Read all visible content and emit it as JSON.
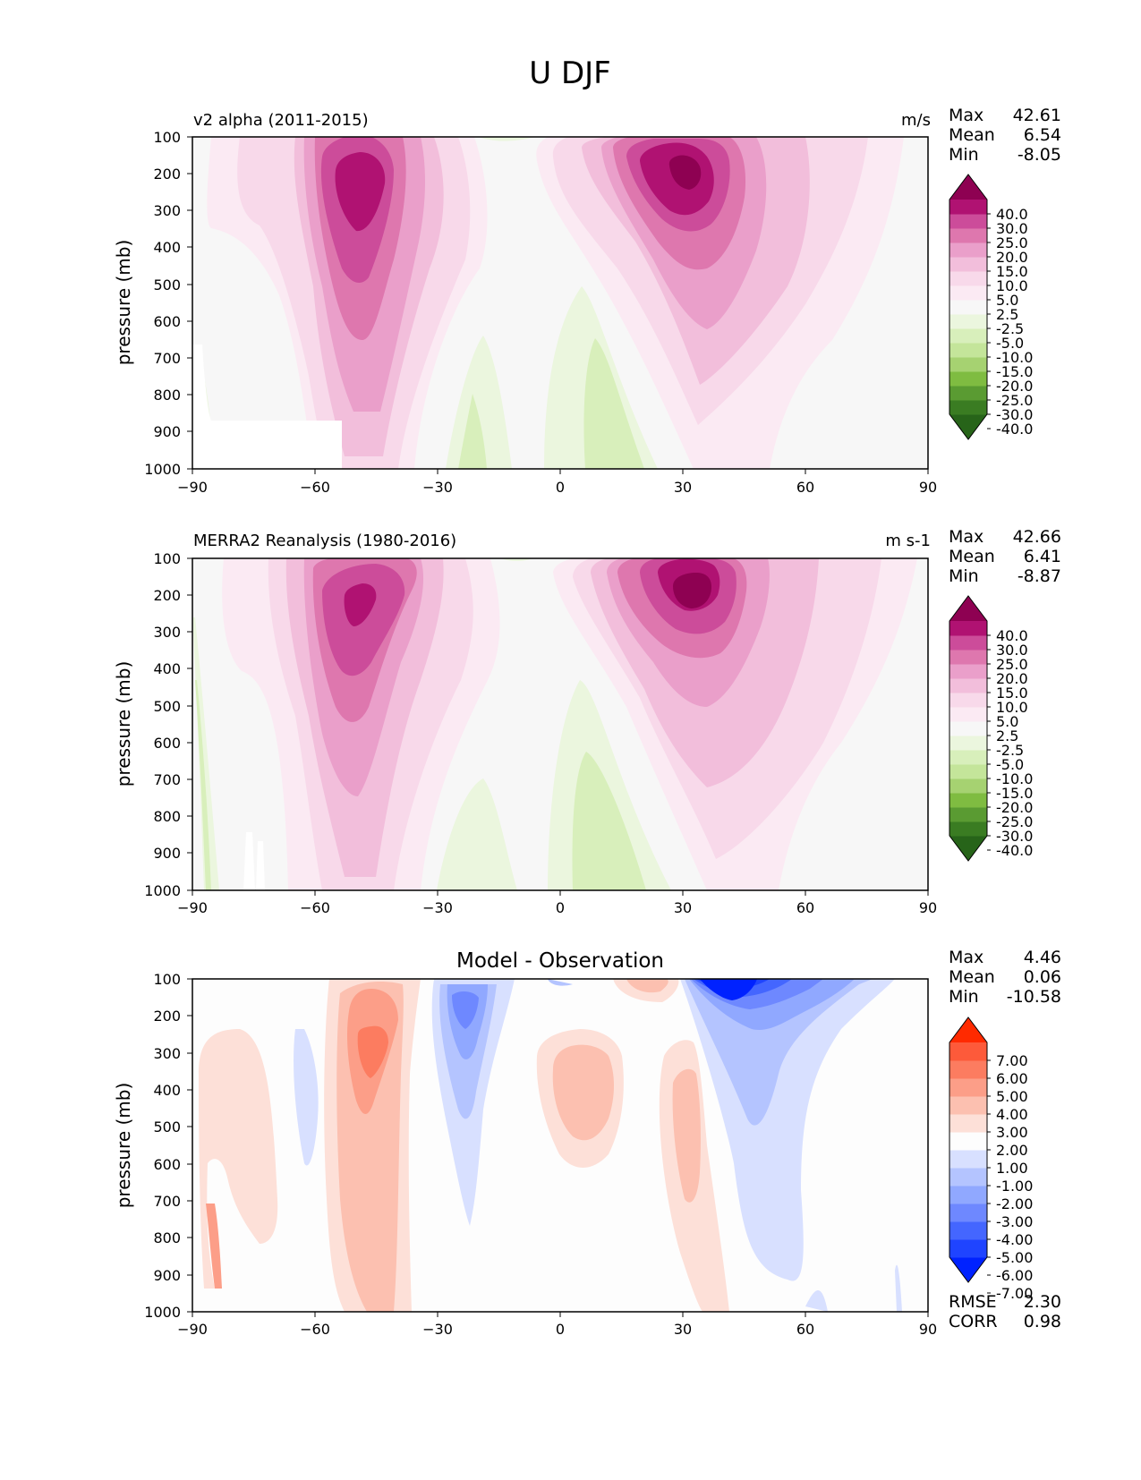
{
  "figure": {
    "title": "U DJF"
  },
  "panels": [
    {
      "title_left": "v2 alpha (2011-2015)",
      "title_right": "m/s",
      "title_center": "",
      "ylabel": "pressure (mb)",
      "stats": [
        {
          "label": "Max",
          "value": "42.61"
        },
        {
          "label": "Mean",
          "value": "6.54"
        },
        {
          "label": "Min",
          "value": "-8.05"
        }
      ],
      "colorbar_labels": [
        "40.0",
        "30.0",
        "25.0",
        "20.0",
        "15.0",
        "10.0",
        "5.0",
        "2.5",
        "-2.5",
        "-5.0",
        "-10.0",
        "-15.0",
        "-20.0",
        "-25.0",
        "-30.0",
        "-40.0"
      ]
    },
    {
      "title_left": "MERRA2 Reanalysis (1980-2016)",
      "title_right": "m s-1",
      "title_center": "",
      "ylabel": "pressure (mb)",
      "stats": [
        {
          "label": "Max",
          "value": "42.66"
        },
        {
          "label": "Mean",
          "value": "6.41"
        },
        {
          "label": "Min",
          "value": "-8.87"
        }
      ],
      "colorbar_labels": [
        "40.0",
        "30.0",
        "25.0",
        "20.0",
        "15.0",
        "10.0",
        "5.0",
        "2.5",
        "-2.5",
        "-5.0",
        "-10.0",
        "-15.0",
        "-20.0",
        "-25.0",
        "-30.0",
        "-40.0"
      ]
    },
    {
      "title_left": "",
      "title_right": "",
      "title_center": "Model - Observation",
      "ylabel": "pressure (mb)",
      "stats": [
        {
          "label": "Max",
          "value": "4.46"
        },
        {
          "label": "Mean",
          "value": "0.06"
        },
        {
          "label": "Min",
          "value": "-10.58"
        }
      ],
      "extra_stats": [
        {
          "label": "RMSE",
          "value": "2.30"
        },
        {
          "label": "CORR",
          "value": "0.98"
        }
      ],
      "colorbar_labels": [
        "7.00",
        "6.00",
        "5.00",
        "4.00",
        "3.00",
        "2.00",
        "1.00",
        "-1.00",
        "-2.00",
        "-3.00",
        "-4.00",
        "-5.00",
        "-6.00",
        "-7.00"
      ]
    }
  ],
  "chart_data": {
    "type": "heatmap",
    "title": "U DJF",
    "xlabel": "",
    "ylabel": "pressure (mb)",
    "xlim": [
      -90,
      90
    ],
    "ylim": [
      1000,
      100
    ],
    "x_ticks": [
      "−90",
      "−60",
      "−30",
      "0",
      "30",
      "60",
      "90"
    ],
    "y_ticks": [
      "100",
      "200",
      "300",
      "400",
      "500",
      "600",
      "700",
      "800",
      "900",
      "1000"
    ],
    "colors": {
      "pink_green": [
        "#276419",
        "#3a7c22",
        "#5a9b32",
        "#7fbc41",
        "#a6d271",
        "#c4e59a",
        "#d8efbb",
        "#ebf6de",
        "#f7f7f7",
        "#fbeaf3",
        "#f8d9ea",
        "#f2bedb",
        "#ea9fca",
        "#de77ae",
        "#cc4c9a",
        "#b01272",
        "#8e0152"
      ],
      "blue_red": [
        "#0022ff",
        "#1f44ff",
        "#4466ff",
        "#6e88ff",
        "#90a8ff",
        "#b4c4ff",
        "#d8e0ff",
        "#fdfdfd",
        "#fde0d8",
        "#fcc0b0",
        "#fc9e88",
        "#fc7c60",
        "#fd5a3a",
        "#ff2a00"
      ]
    },
    "fields": [
      {
        "name": "v2 alpha (2011-2015)",
        "units": "m/s",
        "features": [
          {
            "kind": "jet",
            "lat": -48,
            "p": 250,
            "peak": 36
          },
          {
            "kind": "jet",
            "lat": 30,
            "p": 200,
            "peak": 42.61
          },
          {
            "kind": "easterly",
            "lat": 5,
            "p": 850,
            "peak": -8.05
          },
          {
            "kind": "easterly",
            "lat": -20,
            "p": 900,
            "peak": -5
          }
        ]
      },
      {
        "name": "MERRA2 Reanalysis (1980-2016)",
        "units": "m s-1",
        "features": [
          {
            "kind": "jet",
            "lat": -50,
            "p": 230,
            "peak": 33
          },
          {
            "kind": "jet",
            "lat": 32,
            "p": 200,
            "peak": 42.66
          },
          {
            "kind": "easterly",
            "lat": 5,
            "p": 800,
            "peak": -8.87
          },
          {
            "kind": "easterly",
            "lat": -20,
            "p": 900,
            "peak": -5
          }
        ]
      },
      {
        "name": "Model - Observation",
        "features": [
          {
            "kind": "positive",
            "lat": -47,
            "p": 250,
            "peak": 4.46
          },
          {
            "kind": "negative",
            "lat": -25,
            "p": 200,
            "peak": -4
          },
          {
            "kind": "positive",
            "lat": 5,
            "p": 380,
            "peak": 2.5
          },
          {
            "kind": "negative",
            "lat": 40,
            "p": 120,
            "peak": -10.58
          }
        ]
      }
    ]
  }
}
